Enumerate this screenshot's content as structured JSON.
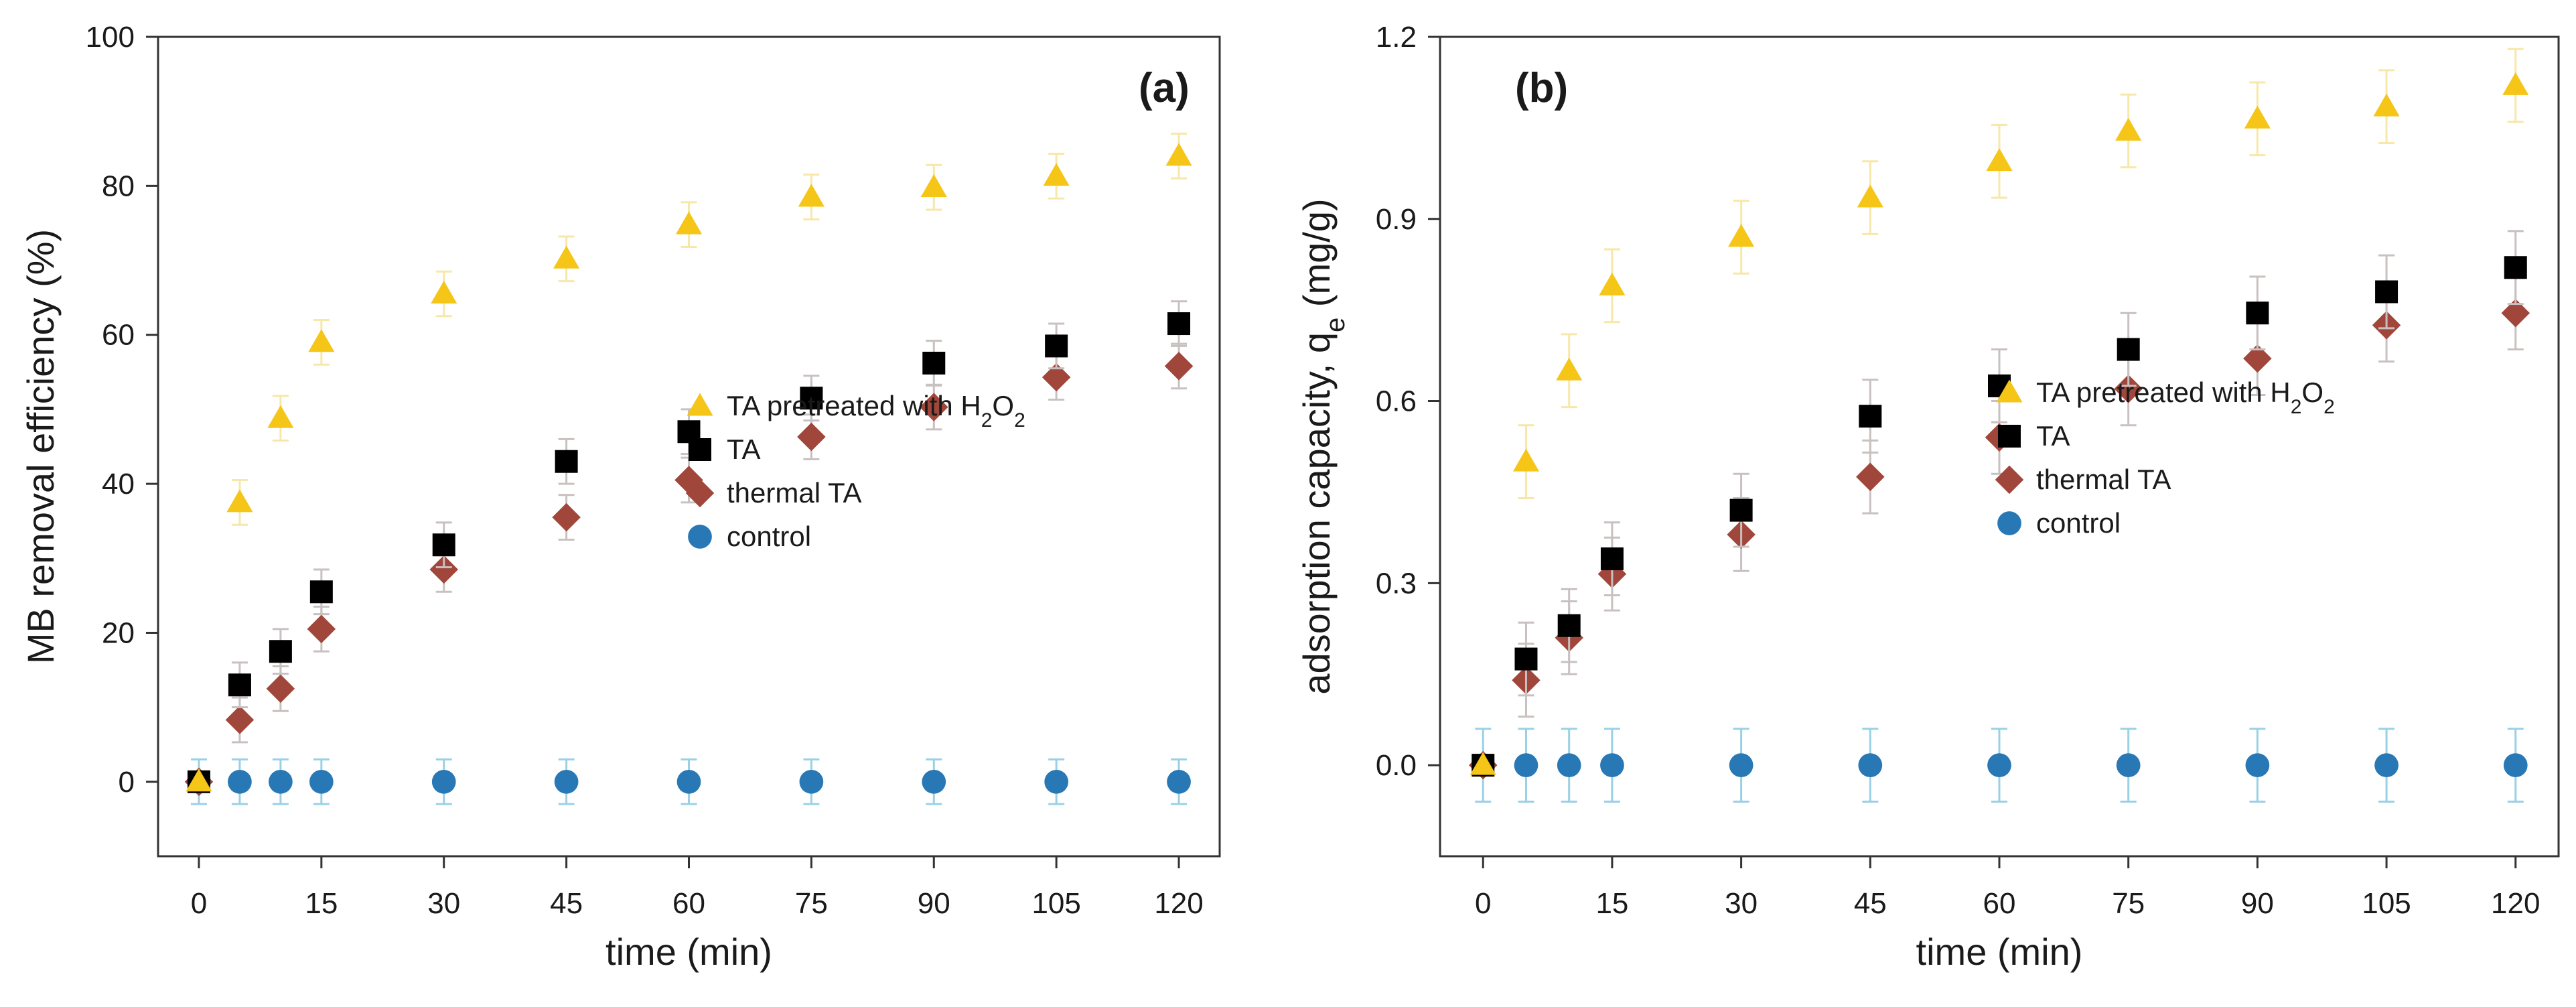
{
  "chart_data": [
    {
      "type": "scatter",
      "panel_label": "(a)",
      "title": "",
      "xlabel": "time (min)",
      "ylabel": "MB removal efficiency (%)",
      "xlim": [
        -5,
        125
      ],
      "ylim": [
        -10,
        100
      ],
      "xticks": [
        0,
        15,
        30,
        45,
        60,
        75,
        90,
        105,
        120
      ],
      "yticks": [
        0,
        20,
        40,
        60,
        80,
        100
      ],
      "legend_position": "center-right",
      "x": [
        0,
        5,
        10,
        15,
        30,
        45,
        60,
        75,
        90,
        105,
        120
      ],
      "series": [
        {
          "name": "TA pretreated with H2O2",
          "name_parts": [
            "TA pretreated with H",
            "2",
            "O",
            "2"
          ],
          "marker": "triangle",
          "color": "#f5c518",
          "values": [
            0,
            37.5,
            48.8,
            59.0,
            65.5,
            70.2,
            74.8,
            78.5,
            79.8,
            81.3,
            84.0
          ],
          "errors": [
            0,
            3.0,
            3.0,
            3.0,
            3.0,
            3.0,
            3.0,
            3.0,
            3.0,
            3.0,
            3.0
          ]
        },
        {
          "name": "TA",
          "marker": "square",
          "color": "#000000",
          "values": [
            0,
            13.0,
            17.5,
            25.5,
            31.8,
            43.0,
            47.0,
            51.5,
            56.2,
            58.5,
            61.5
          ],
          "errors": [
            0,
            3.0,
            3.0,
            3.0,
            3.0,
            3.0,
            3.0,
            3.0,
            3.0,
            3.0,
            3.0
          ]
        },
        {
          "name": "thermal TA",
          "marker": "diamond",
          "color": "#a0463a",
          "values": [
            0,
            8.3,
            12.5,
            20.5,
            28.5,
            35.5,
            40.5,
            46.3,
            50.3,
            54.3,
            55.8
          ],
          "errors": [
            0,
            3.0,
            3.0,
            3.0,
            3.0,
            3.0,
            3.0,
            3.0,
            3.0,
            3.0,
            3.0
          ]
        },
        {
          "name": "control",
          "marker": "circle",
          "color": "#2878b5",
          "values": [
            0,
            0,
            0,
            0,
            0,
            0,
            0,
            0,
            0,
            0,
            0
          ],
          "errors": [
            3.0,
            3.0,
            3.0,
            3.0,
            3.0,
            3.0,
            3.0,
            3.0,
            3.0,
            3.0,
            3.0
          ]
        }
      ]
    },
    {
      "type": "scatter",
      "panel_label": "(b)",
      "title": "",
      "xlabel": "time (min)",
      "ylabel": "adsorption capacity, q",
      "ylabel_sub": "e",
      "ylabel_unit": " (mg/g)",
      "xlim": [
        -5,
        125
      ],
      "ylim": [
        -0.15,
        1.2
      ],
      "xticks": [
        0,
        15,
        30,
        45,
        60,
        75,
        90,
        105,
        120
      ],
      "yticks": [
        "0.0",
        "0.3",
        "0.6",
        "0.9",
        "1.2"
      ],
      "legend_position": "center-right",
      "x": [
        0,
        5,
        10,
        15,
        30,
        45,
        60,
        75,
        90,
        105,
        120
      ],
      "series": [
        {
          "name": "TA pretreated with H2O2",
          "name_parts": [
            "TA pretreated with H",
            "2",
            "O",
            "2"
          ],
          "marker": "triangle",
          "color": "#f5c518",
          "values": [
            0,
            0.5,
            0.65,
            0.79,
            0.87,
            0.935,
            0.995,
            1.045,
            1.065,
            1.085,
            1.12
          ],
          "errors": [
            0,
            0.06,
            0.06,
            0.06,
            0.06,
            0.06,
            0.06,
            0.06,
            0.06,
            0.06,
            0.06
          ]
        },
        {
          "name": "TA",
          "marker": "square",
          "color": "#000000",
          "values": [
            0,
            0.175,
            0.23,
            0.34,
            0.42,
            0.575,
            0.625,
            0.685,
            0.745,
            0.78,
            0.82
          ],
          "errors": [
            0,
            0.06,
            0.06,
            0.06,
            0.06,
            0.06,
            0.06,
            0.06,
            0.06,
            0.06,
            0.06
          ]
        },
        {
          "name": "thermal TA",
          "marker": "diamond",
          "color": "#a0463a",
          "values": [
            0,
            0.14,
            0.21,
            0.315,
            0.38,
            0.475,
            0.54,
            0.62,
            0.67,
            0.725,
            0.745
          ],
          "errors": [
            0,
            0.06,
            0.06,
            0.06,
            0.06,
            0.06,
            0.06,
            0.06,
            0.06,
            0.06,
            0.06
          ]
        },
        {
          "name": "control",
          "marker": "circle",
          "color": "#2878b5",
          "values": [
            0,
            0,
            0,
            0,
            0,
            0,
            0,
            0,
            0,
            0,
            0
          ],
          "errors": [
            0.06,
            0.06,
            0.06,
            0.06,
            0.06,
            0.06,
            0.06,
            0.06,
            0.06,
            0.06,
            0.06
          ]
        }
      ]
    }
  ]
}
